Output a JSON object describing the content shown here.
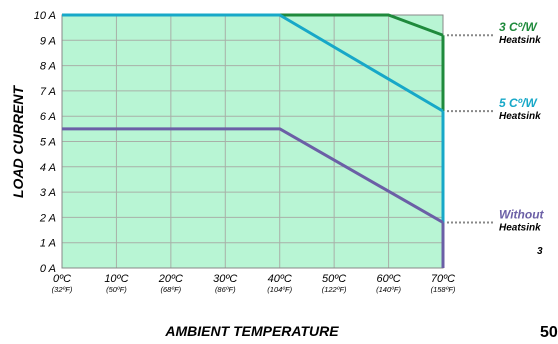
{
  "chart_data": {
    "type": "line",
    "xlabel": "AMBIENT TEMPERATURE",
    "ylabel": "LOAD CURRENT",
    "x_ticks": [
      {
        "value": 0,
        "label": "0ºC",
        "sub": "(32ºF)"
      },
      {
        "value": 10,
        "label": "10ºC",
        "sub": "(50ºF)"
      },
      {
        "value": 20,
        "label": "20ºC",
        "sub": "(68ºF)"
      },
      {
        "value": 30,
        "label": "30ºC",
        "sub": "(86ºF)"
      },
      {
        "value": 40,
        "label": "40ºC",
        "sub": "(104ºF)"
      },
      {
        "value": 50,
        "label": "50ºC",
        "sub": "(122ºF)"
      },
      {
        "value": 60,
        "label": "60ºC",
        "sub": "(140ºF)"
      },
      {
        "value": 70,
        "label": "70ºC",
        "sub": "(158ºF)"
      }
    ],
    "y_ticks": [
      {
        "value": 0,
        "label": "0 A"
      },
      {
        "value": 1,
        "label": "1 A"
      },
      {
        "value": 2,
        "label": "2 A"
      },
      {
        "value": 3,
        "label": "3 A"
      },
      {
        "value": 4,
        "label": "4 A"
      },
      {
        "value": 5,
        "label": "5 A"
      },
      {
        "value": 6,
        "label": "6 A"
      },
      {
        "value": 7,
        "label": "7 A"
      },
      {
        "value": 8,
        "label": "8 A"
      },
      {
        "value": 9,
        "label": "9 A"
      },
      {
        "value": 10,
        "label": "10 A"
      }
    ],
    "xlim": [
      0,
      70
    ],
    "ylim": [
      0,
      10
    ],
    "grid": true,
    "series": [
      {
        "name": "3 Cº/W Heatsink",
        "color": "#1f8a3c",
        "x": [
          0,
          60,
          70
        ],
        "y": [
          10,
          10,
          9.2
        ]
      },
      {
        "name": "5 Cº/W Heatsink",
        "color": "#17a8c8",
        "x": [
          0,
          40,
          70
        ],
        "y": [
          10,
          10,
          6.2
        ]
      },
      {
        "name": "Without Heatsink",
        "color": "#6b5fa6",
        "x": [
          0,
          40,
          70
        ],
        "y": [
          5.5,
          5.5,
          1.8
        ]
      }
    ],
    "annotations": [
      {
        "line1": "3 Cº/W",
        "line2": "Heatsink",
        "y": 9.2,
        "color": "#1f8a3c"
      },
      {
        "line1": "5 Cº/W",
        "line2": "Heatsink",
        "y": 6.2,
        "color": "#17a8c8"
      },
      {
        "line1": "Without",
        "line2": "Heatsink",
        "y": 1.8,
        "color": "#6b5fa6"
      }
    ],
    "fill_color": "#b8f5d4",
    "grid_color": "#a8b0a8"
  },
  "corner_text": "50",
  "stray_mark": "3"
}
